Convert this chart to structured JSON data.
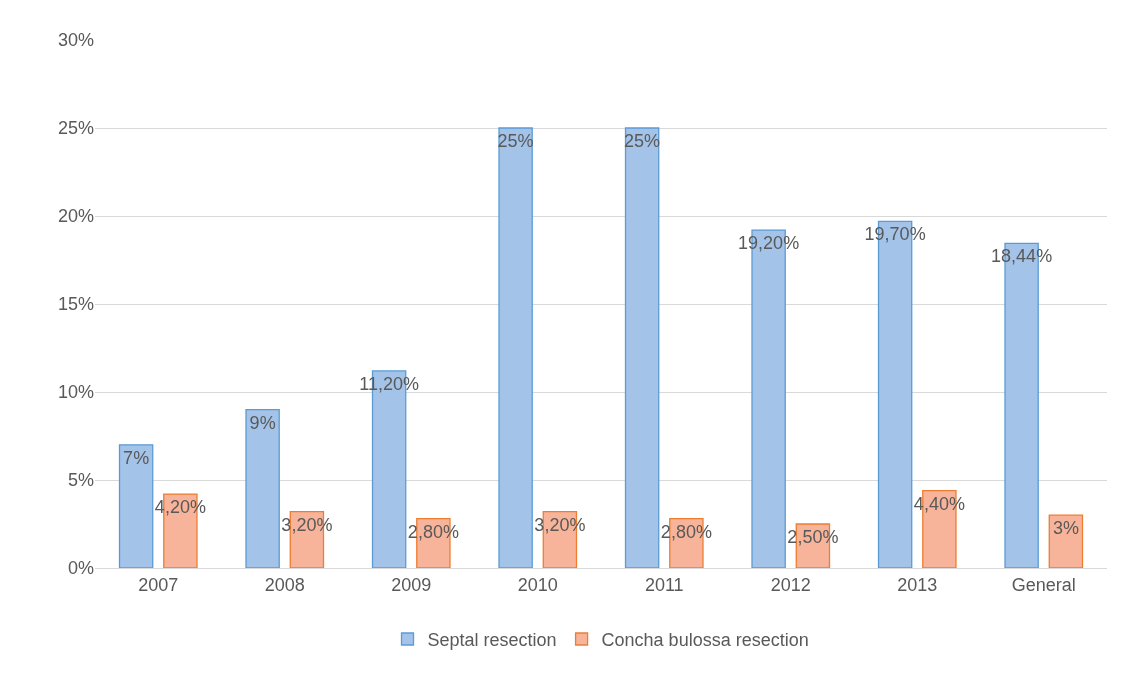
{
  "chart_data": {
    "type": "bar",
    "categories": [
      "2007",
      "2008",
      "2009",
      "2010",
      "2011",
      "2012",
      "2013",
      "General"
    ],
    "series": [
      {
        "name": "Septal resection",
        "color": "#a4c3e8",
        "values": [
          7,
          9,
          11.2,
          25,
          25,
          19.2,
          19.7,
          18.44
        ],
        "value_labels": [
          "7%",
          "9%",
          "11,20%",
          "25%",
          "25%",
          "19,20%",
          "19,70%",
          "18,44%"
        ]
      },
      {
        "name": "Concha bulossa resection",
        "color": "#f7b49a",
        "values": [
          4.2,
          3.2,
          2.8,
          3.2,
          2.8,
          2.5,
          4.4,
          3
        ],
        "value_labels": [
          "4,20%",
          "3,20%",
          "2,80%",
          "3,20%",
          "2,80%",
          "2,50%",
          "4,40%",
          "3%"
        ]
      }
    ],
    "ylim": [
      0,
      30
    ],
    "yticks": [
      {
        "value": 0,
        "label": "0%"
      },
      {
        "value": 5,
        "label": "5%"
      },
      {
        "value": 10,
        "label": "10%"
      },
      {
        "value": 15,
        "label": "15%"
      },
      {
        "value": 20,
        "label": "20%"
      },
      {
        "value": 25,
        "label": "25%"
      },
      {
        "value": 30,
        "label": "30%"
      }
    ],
    "grid": "y",
    "legend": "bottom"
  }
}
